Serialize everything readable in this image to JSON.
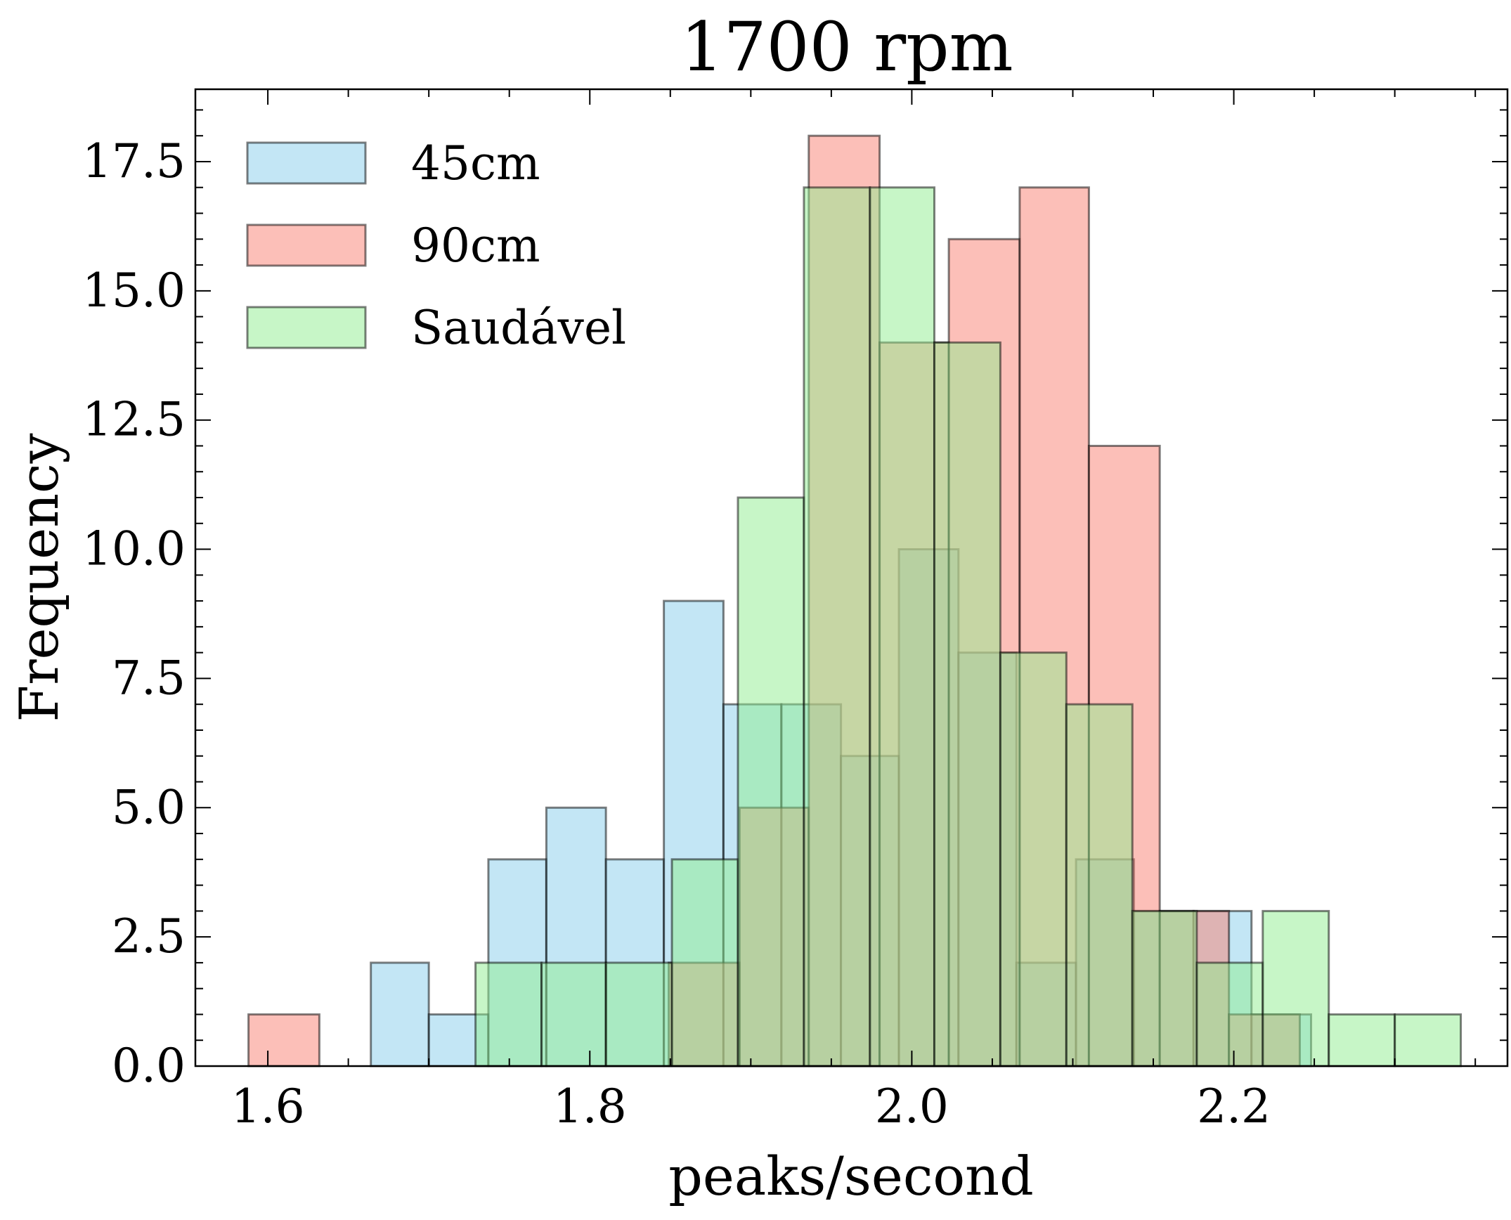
{
  "chart_data": {
    "type": "bar",
    "subtype": "histogram-overlay",
    "title": "1700 rpm",
    "xlabel": "peaks/second",
    "ylabel": "Frequency",
    "xlim": [
      1.555,
      2.37
    ],
    "ylim": [
      0,
      18.9
    ],
    "xticks": [
      1.6,
      1.8,
      2.0,
      2.2
    ],
    "xtick_labels": [
      "1.6",
      "1.8",
      "2.0",
      "2.2"
    ],
    "yticks": [
      0,
      2.5,
      5,
      7.5,
      10,
      12.5,
      15,
      17.5
    ],
    "ytick_labels": [
      "0.0",
      "2.5",
      "5.0",
      "7.5",
      "10.0",
      "12.5",
      "15.0",
      "17.5"
    ],
    "legend_position": "top-left",
    "grid": false,
    "bar_opacity": 0.5,
    "series": [
      {
        "name": "45cm",
        "color": "#87ceeb",
        "bins": [
          {
            "x0": 1.664,
            "x1": 1.7,
            "count": 2
          },
          {
            "x0": 1.7,
            "x1": 1.737,
            "count": 1
          },
          {
            "x0": 1.737,
            "x1": 1.773,
            "count": 4
          },
          {
            "x0": 1.773,
            "x1": 1.81,
            "count": 5
          },
          {
            "x0": 1.81,
            "x1": 1.846,
            "count": 4
          },
          {
            "x0": 1.846,
            "x1": 1.883,
            "count": 9
          },
          {
            "x0": 1.883,
            "x1": 1.919,
            "count": 7
          },
          {
            "x0": 1.919,
            "x1": 1.956,
            "count": 7
          },
          {
            "x0": 1.956,
            "x1": 1.992,
            "count": 6
          },
          {
            "x0": 1.992,
            "x1": 2.029,
            "count": 10
          },
          {
            "x0": 2.029,
            "x1": 2.065,
            "count": 8
          },
          {
            "x0": 2.065,
            "x1": 2.102,
            "count": 2
          },
          {
            "x0": 2.102,
            "x1": 2.138,
            "count": 4
          },
          {
            "x0": 2.138,
            "x1": 2.175,
            "count": 3
          },
          {
            "x0": 2.175,
            "x1": 2.211,
            "count": 3
          },
          {
            "x0": 2.211,
            "x1": 2.248,
            "count": 1
          }
        ]
      },
      {
        "name": "90cm",
        "color": "#fa8072",
        "bins": [
          {
            "x0": 1.588,
            "x1": 1.632,
            "count": 1
          },
          {
            "x0": 1.849,
            "x1": 1.893,
            "count": 2
          },
          {
            "x0": 1.893,
            "x1": 1.936,
            "count": 5
          },
          {
            "x0": 1.936,
            "x1": 1.98,
            "count": 18
          },
          {
            "x0": 1.98,
            "x1": 2.023,
            "count": 14
          },
          {
            "x0": 2.023,
            "x1": 2.067,
            "count": 16
          },
          {
            "x0": 2.067,
            "x1": 2.11,
            "count": 17
          },
          {
            "x0": 2.11,
            "x1": 2.154,
            "count": 12
          },
          {
            "x0": 2.154,
            "x1": 2.197,
            "count": 3
          },
          {
            "x0": 2.197,
            "x1": 2.241,
            "count": 1
          }
        ]
      },
      {
        "name": "Saudável",
        "color": "#90ee90",
        "bins": [
          {
            "x0": 1.729,
            "x1": 1.77,
            "count": 2
          },
          {
            "x0": 1.77,
            "x1": 1.81,
            "count": 2
          },
          {
            "x0": 1.81,
            "x1": 1.851,
            "count": 2
          },
          {
            "x0": 1.851,
            "x1": 1.892,
            "count": 4
          },
          {
            "x0": 1.892,
            "x1": 1.933,
            "count": 11
          },
          {
            "x0": 1.933,
            "x1": 1.974,
            "count": 17
          },
          {
            "x0": 1.974,
            "x1": 2.014,
            "count": 17
          },
          {
            "x0": 2.014,
            "x1": 2.055,
            "count": 14
          },
          {
            "x0": 2.055,
            "x1": 2.096,
            "count": 8
          },
          {
            "x0": 2.096,
            "x1": 2.137,
            "count": 7
          },
          {
            "x0": 2.137,
            "x1": 2.177,
            "count": 3
          },
          {
            "x0": 2.177,
            "x1": 2.218,
            "count": 2
          },
          {
            "x0": 2.218,
            "x1": 2.259,
            "count": 3
          },
          {
            "x0": 2.259,
            "x1": 2.3,
            "count": 1
          },
          {
            "x0": 2.3,
            "x1": 2.341,
            "count": 1
          }
        ]
      }
    ]
  }
}
